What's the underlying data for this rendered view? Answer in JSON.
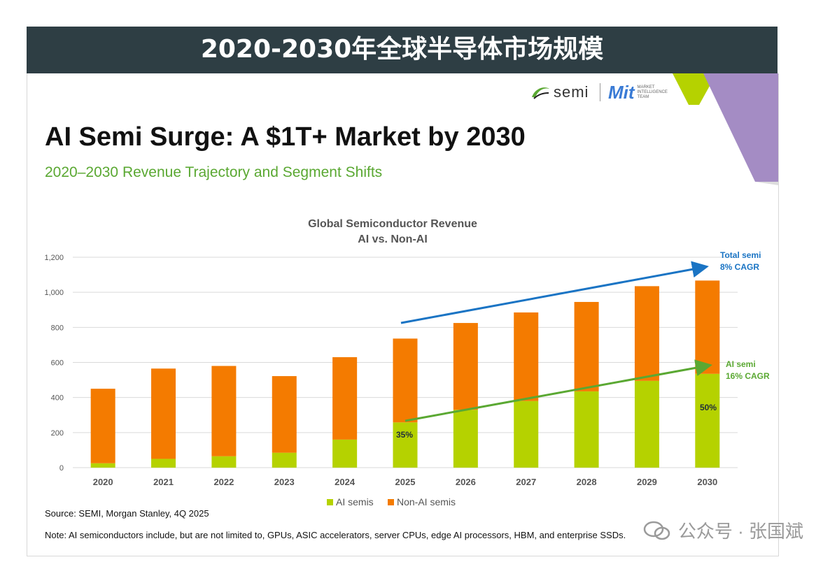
{
  "banner": {
    "title": "2020-2030年全球半导体市场规模"
  },
  "slide": {
    "title": "AI Semi Surge: A $1T+ Market by 2030",
    "subtitle": "2020–2030 Revenue Trajectory and Segment Shifts",
    "logo_semi": "semi",
    "logo_mit": "Mit",
    "logo_mit_small": "MARKET INTELLIGENCE TEAM",
    "source": "Source: SEMI, Morgan Stanley, 4Q 2025",
    "note": "Note: AI semiconductors include, but are not limited to, GPUs, ASIC accelerators, server CPUs, edge AI processors, HBM, and enterprise SSDs."
  },
  "watermark": {
    "text": "公众号 · 张国斌"
  },
  "colors": {
    "ai": "#b5d200",
    "nonai": "#f47b00",
    "total_arrow": "#1a74c4",
    "ai_arrow": "#5aa832",
    "banner": "#2e3e44",
    "accent_green": "#b5d200",
    "accent_purple": "#a48cc4"
  },
  "chart_data": {
    "type": "bar",
    "stacked": true,
    "title": "Global Semiconductor Revenue",
    "subtitle": "AI vs. Non-AI",
    "xlabel": "",
    "ylabel": "",
    "ylim": [
      0,
      1200
    ],
    "yticks": [
      "0",
      "200",
      "400",
      "600",
      "800",
      "1,000",
      "1,200"
    ],
    "grid": true,
    "legend_placement": "bottom",
    "categories": [
      "2020",
      "2021",
      "2022",
      "2023",
      "2024",
      "2025",
      "2026",
      "2027",
      "2028",
      "2029",
      "2030"
    ],
    "series": [
      {
        "name": "AI semis",
        "values": [
          25,
          50,
          65,
          85,
          160,
          258,
          330,
          380,
          435,
          495,
          535
        ]
      },
      {
        "name": "Non-AI semis",
        "values": [
          425,
          515,
          515,
          437,
          470,
          478,
          495,
          505,
          510,
          540,
          532
        ]
      }
    ],
    "annotations": [
      {
        "id": "total",
        "line1": "Total semi",
        "line2": "8% CAGR"
      },
      {
        "id": "ai",
        "line1": "AI semi",
        "line2": "16% CAGR"
      },
      {
        "id": "pct2025",
        "text": "35%",
        "category": "2025"
      },
      {
        "id": "pct2030",
        "text": "50%",
        "category": "2030"
      }
    ]
  }
}
